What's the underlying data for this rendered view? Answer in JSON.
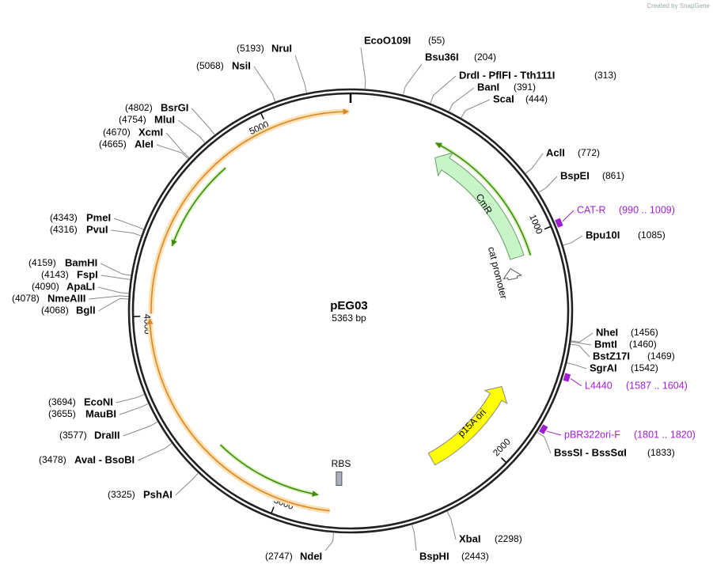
{
  "watermark": "Created by SnapGene",
  "plasmid": {
    "name": "pEG03",
    "length": {
      "value": 5363,
      "label": "5363 bp"
    },
    "ring_ticks": [
      1000,
      2000,
      3000,
      4000,
      5000
    ]
  },
  "sites": [
    {
      "name": "EcoO109I",
      "position": {
        "value": 55,
        "label": "(55)"
      }
    },
    {
      "name": "Bsu36I",
      "position": {
        "value": 204,
        "label": "(204)"
      }
    },
    {
      "name": "DrdI - PflFI - Tth111I",
      "position": {
        "value": 313,
        "label": "(313)"
      }
    },
    {
      "name": "BanI",
      "position": {
        "value": 391,
        "label": "(391)"
      }
    },
    {
      "name": "ScaI",
      "position": {
        "value": 444,
        "label": "(444)"
      }
    },
    {
      "name": "AclI",
      "position": {
        "value": 772,
        "label": "(772)"
      }
    },
    {
      "name": "BspEI",
      "position": {
        "value": 861,
        "label": "(861)"
      }
    },
    {
      "name": "Bpu10I",
      "position": {
        "value": 1085,
        "label": "(1085)"
      }
    },
    {
      "name": "NheI",
      "position": {
        "value": 1456,
        "label": "(1456)"
      }
    },
    {
      "name": "BmtI",
      "position": {
        "value": 1460,
        "label": "(1460)"
      }
    },
    {
      "name": "BstZ17I",
      "position": {
        "value": 1469,
        "label": "(1469)"
      }
    },
    {
      "name": "SgrAI",
      "position": {
        "value": 1542,
        "label": "(1542)"
      }
    },
    {
      "name": "BssSI - BssSαI",
      "position": {
        "value": 1833,
        "label": "(1833)"
      }
    },
    {
      "name": "XbaI",
      "position": {
        "value": 2298,
        "label": "(2298)"
      }
    },
    {
      "name": "BspHI",
      "position": {
        "value": 2443,
        "label": "(2443)"
      }
    },
    {
      "name": "NdeI",
      "position": {
        "value": 2747,
        "label": "(2747)"
      }
    },
    {
      "name": "PshAI",
      "position": {
        "value": 3325,
        "label": "(3325)"
      }
    },
    {
      "name": "AvaI - BsoBI",
      "position": {
        "value": 3478,
        "label": "(3478)"
      }
    },
    {
      "name": "DraIII",
      "position": {
        "value": 3577,
        "label": "(3577)"
      }
    },
    {
      "name": "MauBI",
      "position": {
        "value": 3655,
        "label": "(3655)"
      }
    },
    {
      "name": "EcoNI",
      "position": {
        "value": 3694,
        "label": "(3694)"
      }
    },
    {
      "name": "BglI",
      "position": {
        "value": 4068,
        "label": "(4068)"
      }
    },
    {
      "name": "NmeAIII",
      "position": {
        "value": 4078,
        "label": "(4078)"
      }
    },
    {
      "name": "ApaLI",
      "position": {
        "value": 4090,
        "label": "(4090)"
      }
    },
    {
      "name": "FspI",
      "position": {
        "value": 4143,
        "label": "(4143)"
      }
    },
    {
      "name": "BamHI",
      "position": {
        "value": 4159,
        "label": "(4159)"
      }
    },
    {
      "name": "PvuI",
      "position": {
        "value": 4316,
        "label": "(4316)"
      }
    },
    {
      "name": "PmeI",
      "position": {
        "value": 4343,
        "label": "(4343)"
      }
    },
    {
      "name": "AleI",
      "position": {
        "value": 4665,
        "label": "(4665)"
      }
    },
    {
      "name": "XcmI",
      "position": {
        "value": 4670,
        "label": "(4670)"
      }
    },
    {
      "name": "MluI",
      "position": {
        "value": 4754,
        "label": "(4754)"
      }
    },
    {
      "name": "BsrGI",
      "position": {
        "value": 4802,
        "label": "(4802)"
      }
    },
    {
      "name": "NsiI",
      "position": {
        "value": 5068,
        "label": "(5068)"
      }
    },
    {
      "name": "NruI",
      "position": {
        "value": 5193,
        "label": "(5193)"
      }
    }
  ],
  "primers": [
    {
      "name": "CAT-R",
      "range": {
        "start": 990,
        "end": 1009,
        "label": "(990 .. 1009)"
      }
    },
    {
      "name": "L4440",
      "range": {
        "start": 1587,
        "end": 1604,
        "label": "(1587 .. 1604)"
      }
    },
    {
      "name": "pBR322ori-F",
      "range": {
        "start": 1801,
        "end": 1820,
        "label": "(1801 .. 1820)"
      }
    }
  ],
  "features": [
    {
      "name": "CmR"
    },
    {
      "name": "cat promoter"
    },
    {
      "name": "p15A ori"
    },
    {
      "name": "RBS"
    }
  ]
}
